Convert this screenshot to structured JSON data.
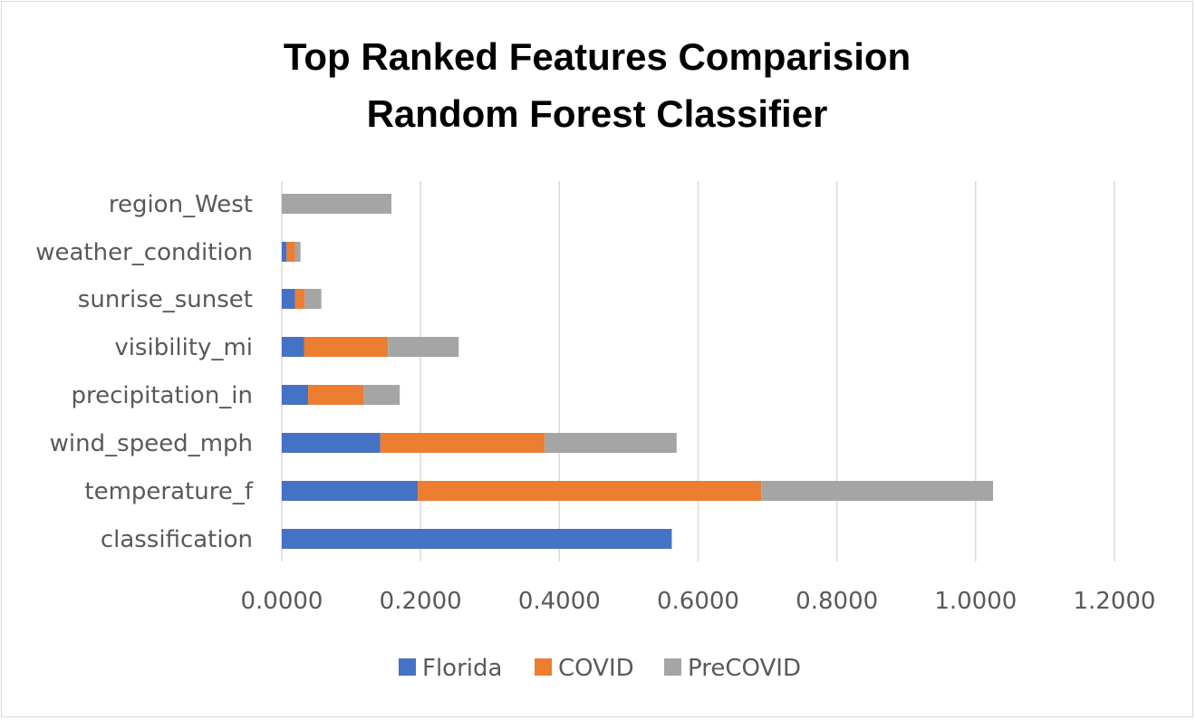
{
  "chart_data": {
    "type": "bar",
    "orientation": "horizontal",
    "stacked": true,
    "title_lines": [
      "Top Ranked Features Comparision",
      "Random Forest Classifier"
    ],
    "categories": [
      "classification",
      "temperature_f",
      "wind_speed_mph",
      "precipitation_in",
      "visibility_mi",
      "sunrise_sunset",
      "weather_condition",
      "region_West"
    ],
    "series": [
      {
        "name": "Florida",
        "color": "#4472c4",
        "values": [
          0.562,
          0.196,
          0.142,
          0.038,
          0.032,
          0.019,
          0.007,
          0.0
        ]
      },
      {
        "name": "COVID",
        "color": "#ed7d31",
        "values": [
          0.0,
          0.495,
          0.237,
          0.08,
          0.121,
          0.014,
          0.012,
          0.0
        ]
      },
      {
        "name": "PreCOVID",
        "color": "#a5a5a5",
        "values": [
          0.0,
          0.334,
          0.19,
          0.052,
          0.102,
          0.024,
          0.008,
          0.158
        ]
      }
    ],
    "x_ticks": [
      "0.0000",
      "0.2000",
      "0.4000",
      "0.6000",
      "0.8000",
      "1.0000",
      "1.2000"
    ],
    "xlim": [
      0,
      1.2
    ],
    "grid": "vertical",
    "legend_position": "bottom"
  }
}
